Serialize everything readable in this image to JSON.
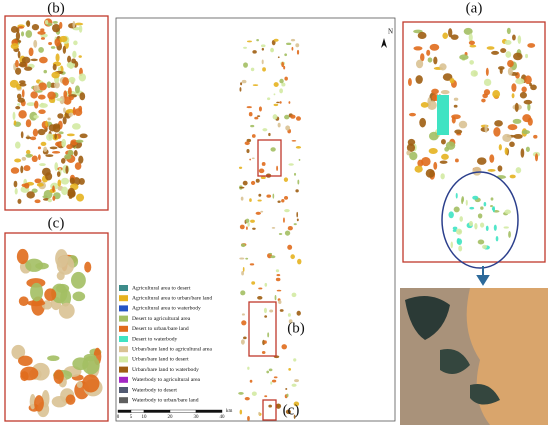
{
  "panels": {
    "b": "(b)",
    "a": "(a)",
    "c": "(c)"
  },
  "map": {
    "north": "N",
    "inset_b": "(b)",
    "inset_c": "(c)"
  },
  "legend": [
    {
      "label": "Agricultural area to desert",
      "color": "#3d8c8a"
    },
    {
      "label": "Agricultural area to urban/bare land",
      "color": "#e6b21f"
    },
    {
      "label": "Agricultural area to waterbody",
      "color": "#2453c4"
    },
    {
      "label": "Desert to agricultural area",
      "color": "#a3bf63"
    },
    {
      "label": "Desert to urban/bare land",
      "color": "#e06b1c"
    },
    {
      "label": "Desert to waterbody",
      "color": "#3fe3c3"
    },
    {
      "label": "Urban/bare land to agricultural area",
      "color": "#d9c293"
    },
    {
      "label": "Urban/bare land to desert",
      "color": "#d3eaa3"
    },
    {
      "label": "Urban/bare land to waterbody",
      "color": "#9e5e12"
    },
    {
      "label": "Waterbody to agricultural area",
      "color": "#a326c4"
    },
    {
      "label": "Waterbody to desert",
      "color": "#525a72"
    },
    {
      "label": "Waterbody to urban/bare land",
      "color": "#5f5f5f"
    }
  ],
  "scale_bar": {
    "ticks": [
      0,
      5,
      10,
      20,
      30,
      40
    ],
    "unit": "km"
  }
}
